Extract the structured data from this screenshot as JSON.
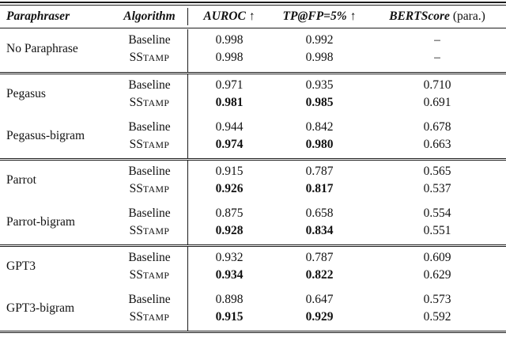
{
  "header": {
    "paraphraser": "Paraphraser",
    "algorithm": "Algorithm",
    "auroc": "AUROC",
    "auroc_arrow": "↑",
    "tp_at_fp": "TP@FP=5%",
    "tp_at_fp_arrow": "↑",
    "bertscore": "BERTScore",
    "bertscore_suffix": "(para.)"
  },
  "labels": {
    "baseline": "Baseline",
    "sstamp_caps": "SS",
    "sstamp_small": "TAMP",
    "no_result": "–"
  },
  "colors": {
    "text": "#111111",
    "rule": "#1c1c1c",
    "background": "#ffffff"
  },
  "groups": [
    {
      "paraphraser": "No Paraphrase",
      "baseline": {
        "auroc": "0.998",
        "tp_at_fp": "0.992",
        "bertscore": "–"
      },
      "sstamp": {
        "auroc": "0.998",
        "tp_at_fp": "0.998",
        "bertscore": "–"
      }
    },
    {
      "paraphraser": "Pegasus",
      "baseline": {
        "auroc": "0.971",
        "tp_at_fp": "0.935",
        "bertscore": "0.710"
      },
      "sstamp": {
        "auroc": "0.981",
        "tp_at_fp": "0.985",
        "bertscore": "0.691"
      }
    },
    {
      "paraphraser": "Pegasus-bigram",
      "baseline": {
        "auroc": "0.944",
        "tp_at_fp": "0.842",
        "bertscore": "0.678"
      },
      "sstamp": {
        "auroc": "0.974",
        "tp_at_fp": "0.980",
        "bertscore": "0.663"
      }
    },
    {
      "paraphraser": "Parrot",
      "baseline": {
        "auroc": "0.915",
        "tp_at_fp": "0.787",
        "bertscore": "0.565"
      },
      "sstamp": {
        "auroc": "0.926",
        "tp_at_fp": "0.817",
        "bertscore": "0.537"
      }
    },
    {
      "paraphraser": "Parrot-bigram",
      "baseline": {
        "auroc": "0.875",
        "tp_at_fp": "0.658",
        "bertscore": "0.554"
      },
      "sstamp": {
        "auroc": "0.928",
        "tp_at_fp": "0.834",
        "bertscore": "0.551"
      }
    },
    {
      "paraphraser": "GPT3",
      "baseline": {
        "auroc": "0.932",
        "tp_at_fp": "0.787",
        "bertscore": "0.609"
      },
      "sstamp": {
        "auroc": "0.934",
        "tp_at_fp": "0.822",
        "bertscore": "0.629"
      }
    },
    {
      "paraphraser": "GPT3-bigram",
      "baseline": {
        "auroc": "0.898",
        "tp_at_fp": "0.647",
        "bertscore": "0.573"
      },
      "sstamp": {
        "auroc": "0.915",
        "tp_at_fp": "0.929",
        "bertscore": "0.592"
      }
    }
  ]
}
